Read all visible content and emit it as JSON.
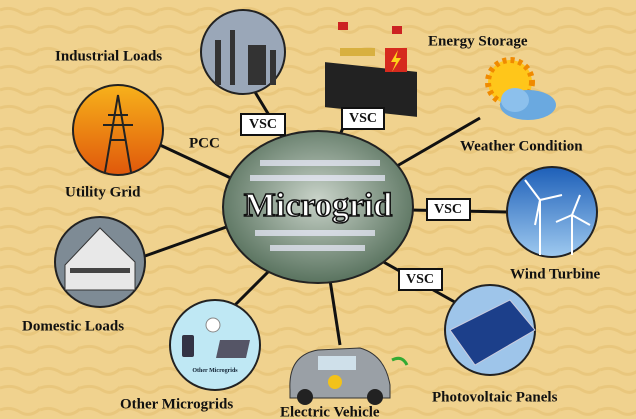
{
  "center": {
    "label": "Microgrid"
  },
  "nodes": [
    {
      "label": "Industrial Loads"
    },
    {
      "label": "Energy Storage"
    },
    {
      "label": "Weather Condition"
    },
    {
      "label": "Wind Turbine"
    },
    {
      "label": "Photovoltaic Panels"
    },
    {
      "label": "Electric Vehicle"
    },
    {
      "label": "Other Microgrids",
      "caption": "Other Microgrids"
    },
    {
      "label": "Domestic Loads"
    },
    {
      "label": "Utility Grid"
    }
  ],
  "connectors": [
    {
      "label": "VSC"
    },
    {
      "label": "VSC"
    },
    {
      "label": "VSC"
    },
    {
      "label": "VSC"
    },
    {
      "label": "PCC"
    }
  ]
}
